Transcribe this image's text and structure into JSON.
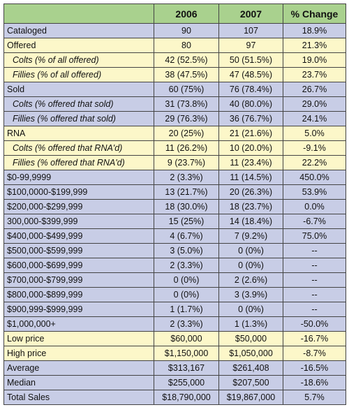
{
  "table": {
    "header": [
      "2006",
      "2007",
      "% Change"
    ],
    "rows": [
      [
        "Cataloged",
        "90",
        "107",
        "18.9%"
      ],
      [
        "Offered",
        "80",
        "97",
        "21.3%"
      ],
      [
        "Colts (% of all offered)",
        "42 (52.5%)",
        "50 (51.5%)",
        "19.0%"
      ],
      [
        "Fillies (% of all offered)",
        "38 (47.5%)",
        "47 (48.5%)",
        "23.7%"
      ],
      [
        "Sold",
        "60 (75%)",
        "76 (78.4%)",
        "26.7%"
      ],
      [
        "Colts (% offered that sold)",
        "31 (73.8%)",
        "40 (80.0%)",
        "29.0%"
      ],
      [
        "Fillies (% offered that sold)",
        "29 (76.3%)",
        "36 (76.7%)",
        "24.1%"
      ],
      [
        "RNA",
        "20 (25%)",
        "21 (21.6%)",
        "5.0%"
      ],
      [
        "Colts (% offered that RNA'd)",
        "11 (26.2%)",
        "10 (20.0%)",
        "-9.1%"
      ],
      [
        "Fillies (% offered that RNA'd)",
        "9 (23.7%)",
        "11 (23.4%)",
        "22.2%"
      ],
      [
        "$0-99,9999",
        "2 (3.3%)",
        "11 (14.5%)",
        "450.0%"
      ],
      [
        "$100,0000-$199,999",
        "13 (21.7%)",
        "20 (26.3%)",
        "53.9%"
      ],
      [
        "$200,000-$299,999",
        "18 (30.0%)",
        "18 (23.7%)",
        "0.0%"
      ],
      [
        "300,000-$399,999",
        "15 (25%)",
        "14 (18.4%)",
        "-6.7%"
      ],
      [
        "$400,000-$499,999",
        "4 (6.7%)",
        "7 (9.2%)",
        "75.0%"
      ],
      [
        "$500,000-$599,999",
        "3 (5.0%)",
        "0 (0%)",
        "--"
      ],
      [
        "$600,000-$699,999",
        "2 (3.3%)",
        "0 (0%)",
        "--"
      ],
      [
        "$700,000-$799,999",
        "0 (0%)",
        "2 (2.6%)",
        "--"
      ],
      [
        "$800,000-$899,999",
        "0 (0%)",
        "3 (3.9%)",
        "--"
      ],
      [
        "$900,999-$999,999",
        "1 (1.7%)",
        "0 (0%)",
        "--"
      ],
      [
        "$1,000,000+",
        "2 (3.3%)",
        "1 (1.3%)",
        "-50.0%"
      ],
      [
        "Low price",
        "$60,000",
        "$50,000",
        "-16.7%"
      ],
      [
        "High price",
        "$1,150,000",
        "$1,050,000",
        "-8.7%"
      ],
      [
        "Average",
        "$313,167",
        "$261,408",
        "-16.5%"
      ],
      [
        "Median",
        "$255,000",
        "$207,500",
        "-18.6%"
      ],
      [
        "Total Sales",
        "$18,790,000",
        "$19,867,000",
        "5.7%"
      ]
    ]
  }
}
